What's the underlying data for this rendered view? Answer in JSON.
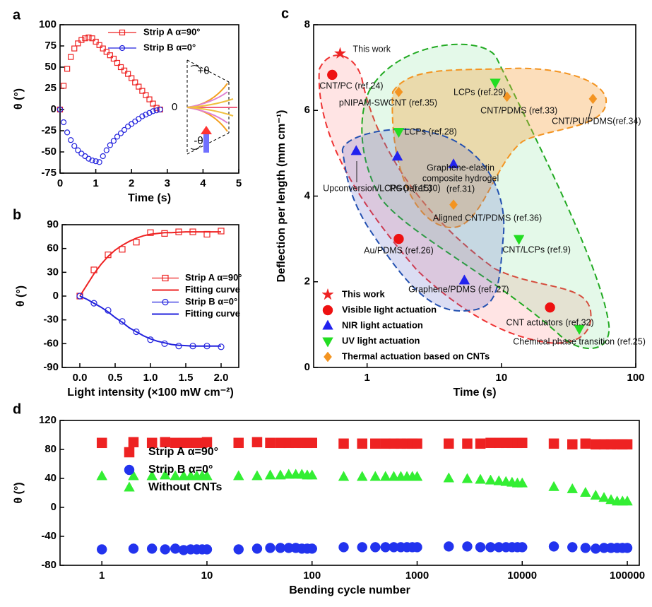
{
  "chart_data": [
    {
      "type": "line",
      "label": "a",
      "xlabel": "Time (s)",
      "ylabel": "θ (°)",
      "xlim": [
        0,
        5
      ],
      "xticks": [
        0,
        1,
        2,
        3,
        4,
        5
      ],
      "ylim": [
        -75,
        100
      ],
      "yticks": [
        -75,
        -50,
        -25,
        0,
        25,
        50,
        75,
        100
      ],
      "legend": "upper right",
      "x": [
        0,
        0.1,
        0.2,
        0.3,
        0.4,
        0.5,
        0.6,
        0.7,
        0.8,
        0.9,
        1,
        1.1,
        1.2,
        1.3,
        1.4,
        1.5,
        1.6,
        1.7,
        1.8,
        1.9,
        2,
        2.1,
        2.2,
        2.3,
        2.4,
        2.5,
        2.6,
        2.7,
        2.8
      ],
      "series": [
        {
          "name": "Strip A α=90°",
          "color": "#ee2222",
          "marker": "square",
          "filled": false,
          "values": [
            0,
            28,
            48,
            62,
            72,
            78,
            82,
            84,
            85,
            84,
            80,
            76,
            72,
            68,
            64,
            60,
            55,
            50,
            46,
            42,
            37,
            32,
            27,
            22,
            17,
            12,
            7,
            2,
            0
          ]
        },
        {
          "name": "Strip B α=0°",
          "color": "#2222dd",
          "marker": "circle",
          "filled": false,
          "values": [
            0,
            -15,
            -27,
            -36,
            -43,
            -48,
            -52,
            -55,
            -58,
            -60,
            -61,
            -62,
            -55,
            -48,
            -42,
            -37,
            -32,
            -28,
            -24,
            -20,
            -17,
            -14,
            -11,
            -8,
            -6,
            -4,
            -2,
            -1,
            0
          ]
        }
      ],
      "annotations": [
        "+θ",
        "0",
        "-θ"
      ]
    },
    {
      "type": "line",
      "label": "b",
      "xlabel": "Light intensity (×100 mW cm⁻²)",
      "ylabel": "θ (°)",
      "xlim": [
        -0.25,
        2.25
      ],
      "xticks": [
        {
          "value": 0,
          "label": "0.0"
        },
        0.5,
        {
          "value": 1,
          "label": "1.0"
        },
        1.5,
        {
          "value": 2,
          "label": "2.0"
        }
      ],
      "ylim": [
        -90,
        90
      ],
      "yticks": [
        -90,
        -60,
        -30,
        0,
        30,
        60,
        90
      ],
      "legend": "center right",
      "series": [
        {
          "name": "Strip A α=90°",
          "color": "#ee2222",
          "marker": "square",
          "filled": false,
          "x": [
            0,
            0.2,
            0.4,
            0.6,
            0.8,
            1,
            1.2,
            1.4,
            1.6,
            1.8,
            2
          ],
          "values": [
            0,
            33,
            52,
            59,
            68,
            80,
            79,
            81,
            81,
            78,
            82
          ]
        },
        {
          "name": "Fitting curve",
          "color": "#ee2222",
          "style": "line",
          "x": [
            0,
            0.1,
            0.2,
            0.3,
            0.4,
            0.5,
            0.6,
            0.7,
            0.8,
            0.9,
            1,
            1.1,
            1.2,
            1.3,
            1.4,
            1.5,
            1.6,
            1.7,
            1.8,
            1.9,
            2
          ],
          "values": [
            0,
            14,
            28,
            40,
            50,
            58,
            64,
            69,
            73,
            76,
            78,
            79,
            80,
            80,
            80.5,
            81,
            81,
            81,
            81,
            81,
            81
          ]
        },
        {
          "name": "Strip B α=0°",
          "color": "#2222dd",
          "marker": "circle",
          "filled": false,
          "x": [
            0,
            0.2,
            0.4,
            0.6,
            0.8,
            1,
            1.2,
            1.4,
            1.6,
            1.8,
            2
          ],
          "values": [
            0,
            -9,
            -18,
            -32,
            -45,
            -55,
            -60,
            -63,
            -63,
            -63,
            -64
          ]
        },
        {
          "name": "Fitting curve",
          "color": "#2222dd",
          "style": "line",
          "x": [
            0,
            0.1,
            0.2,
            0.3,
            0.4,
            0.5,
            0.6,
            0.7,
            0.8,
            0.9,
            1,
            1.1,
            1.2,
            1.3,
            1.4,
            1.5,
            1.6,
            1.7,
            1.8,
            1.9,
            2
          ],
          "values": [
            0,
            -4,
            -9,
            -14,
            -20,
            -27,
            -33,
            -40,
            -45,
            -50,
            -54,
            -57,
            -59,
            -61,
            -62,
            -62.5,
            -63,
            -63,
            -63,
            -63,
            -63
          ]
        }
      ]
    },
    {
      "type": "scatter",
      "label": "c",
      "xlabel": "Time (s)",
      "ylabel": "Deflection per length (mm cm⁻¹)",
      "xscale": "log",
      "xlim": [
        0.4,
        100
      ],
      "xticks": [
        1,
        10,
        100
      ],
      "ylim": [
        0,
        8
      ],
      "yticks": [
        0,
        2,
        4,
        6,
        8
      ],
      "legend": "lower left",
      "series": [
        {
          "name": "This work",
          "color": "#ee2222",
          "marker": "star",
          "filled": true,
          "x": [
            0.63
          ],
          "values": [
            7.33
          ],
          "labels": [
            "This work"
          ]
        },
        {
          "name": "Visible light actuation",
          "color": "#ee1111",
          "marker": "circle",
          "filled": true,
          "x": [
            0.55,
            1.72,
            23
          ],
          "values": [
            6.83,
            3.0,
            1.4
          ],
          "labels": [
            "CNT/PC (ref.24)",
            "Au/PDMS (ref.26)",
            "CNT actuators (ref.32)"
          ]
        },
        {
          "name": "NIR light actuation",
          "color": "#2222ee",
          "marker": "triangle-up",
          "filled": true,
          "x": [
            0.83,
            1.68,
            4.4,
            5.3
          ],
          "values": [
            5.05,
            4.92,
            4.74,
            2.03
          ],
          "labels": [
            "Upconversion/LCPs (ref.15)",
            "RGO (ref.30)",
            "Graphene-elastin composite hydrogel (ref.31)",
            "Graphene/PDMS (ref. 27)"
          ]
        },
        {
          "name": "UV light actuation",
          "color": "#22dd22",
          "marker": "triangle-down",
          "filled": true,
          "x": [
            9,
            1.72,
            13.5,
            38
          ],
          "values": [
            6.65,
            5.5,
            3.0,
            0.9
          ],
          "labels": [
            "LCPs (ref.29)",
            "LCPs (ref.28)",
            "CNT/LCPs (ref.9)",
            "Chemical phase transition (ref.25)"
          ]
        },
        {
          "name": "Thermal actuation based on CNTs",
          "color": "#f39421",
          "marker": "diamond",
          "filled": true,
          "x": [
            1.72,
            11,
            48,
            4.4
          ],
          "values": [
            6.43,
            6.32,
            6.27,
            3.8
          ],
          "labels": [
            "pNIPAM-SWCNT (ref.35)",
            "CNT/PDMS (ref.33)",
            "CNT/PU/PDMS(ref.34)",
            "Aligned CNT/PDMS (ref.36)"
          ]
        }
      ]
    },
    {
      "type": "scatter",
      "label": "d",
      "xlabel": "Bending cycle number",
      "ylabel": "θ (°)",
      "xscale": "log",
      "xlim": [
        0.4,
        130000
      ],
      "xticks": [
        1,
        10,
        100,
        1000,
        10000,
        100000
      ],
      "ylim": [
        -80,
        120
      ],
      "yticks": [
        -80,
        -40,
        0,
        40,
        80,
        120
      ],
      "legend": "upper left",
      "x": [
        1,
        2,
        3,
        4,
        5,
        6,
        7,
        8,
        9,
        10,
        20,
        30,
        40,
        50,
        60,
        70,
        80,
        90,
        100,
        200,
        300,
        400,
        500,
        600,
        700,
        800,
        900,
        1000,
        2000,
        3000,
        4000,
        5000,
        6000,
        7000,
        8000,
        9000,
        10000,
        20000,
        30000,
        40000,
        50000,
        60000,
        70000,
        80000,
        90000,
        100000
      ],
      "series": [
        {
          "name": "Strip A α=90°",
          "color": "#ee2222",
          "marker": "square",
          "filled": true,
          "values": [
            89,
            90,
            89,
            90,
            89,
            89,
            89,
            89,
            89,
            90,
            89,
            90,
            89,
            89,
            89,
            89,
            89,
            89,
            89,
            88,
            88,
            88,
            88,
            88,
            88,
            88,
            88,
            88,
            88,
            88,
            88,
            89,
            89,
            89,
            89,
            89,
            89,
            88,
            87,
            88,
            87,
            87,
            87,
            87,
            87,
            87
          ]
        },
        {
          "name": "Strip B α=0°",
          "color": "#2233ee",
          "marker": "circle",
          "filled": true,
          "values": [
            -58,
            -57,
            -57,
            -58,
            -57,
            -59,
            -58,
            -58,
            -58,
            -58,
            -58,
            -57,
            -56,
            -56,
            -56,
            -56,
            -57,
            -57,
            -57,
            -55,
            -55,
            -55,
            -55,
            -55,
            -55,
            -55,
            -55,
            -55,
            -54,
            -54,
            -55,
            -55,
            -55,
            -55,
            -55,
            -55,
            -55,
            -54,
            -55,
            -56,
            -57,
            -56,
            -56,
            -56,
            -56,
            -56
          ]
        },
        {
          "name": "Without CNTs",
          "color": "#33ee33",
          "marker": "triangle-up",
          "filled": true,
          "values": [
            43,
            43,
            43,
            44,
            43,
            43,
            43,
            43,
            43,
            43,
            43,
            43,
            44,
            44,
            45,
            45,
            45,
            44,
            44,
            42,
            42,
            42,
            42,
            42,
            42,
            42,
            42,
            42,
            40,
            39,
            38,
            37,
            36,
            35,
            34,
            33,
            33,
            28,
            25,
            20,
            16,
            13,
            10,
            8,
            8,
            8
          ]
        }
      ]
    }
  ]
}
